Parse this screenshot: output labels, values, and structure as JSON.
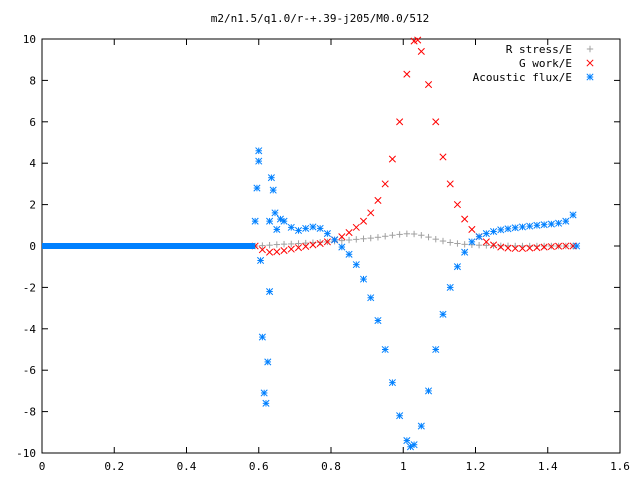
{
  "chart_data": {
    "type": "scatter",
    "title": "m2/n1.5/q1.0/r-+.39-j205/M0.0/512",
    "xlabel": "",
    "ylabel": "",
    "xlim": [
      0,
      1.6
    ],
    "ylim": [
      -10,
      10
    ],
    "x_ticks": [
      "0",
      "0.2",
      "0.4",
      "0.6",
      "0.8",
      "1",
      "1.2",
      "1.4",
      "1.6"
    ],
    "y_ticks": [
      "10",
      "8",
      "6",
      "4",
      "2",
      "0",
      "-2",
      "-4",
      "-6",
      "-8",
      "-10"
    ],
    "grid": false,
    "legend_position": "top-right",
    "series": [
      {
        "name": "R stress/E",
        "marker": "plus",
        "color": "#a0a0a0",
        "points": [
          [
            0.59,
            0.0
          ],
          [
            0.61,
            0.02
          ],
          [
            0.63,
            0.04
          ],
          [
            0.65,
            0.07
          ],
          [
            0.67,
            0.09
          ],
          [
            0.69,
            0.1
          ],
          [
            0.71,
            0.12
          ],
          [
            0.73,
            0.14
          ],
          [
            0.75,
            0.16
          ],
          [
            0.77,
            0.18
          ],
          [
            0.79,
            0.2
          ],
          [
            0.81,
            0.23
          ],
          [
            0.83,
            0.26
          ],
          [
            0.85,
            0.29
          ],
          [
            0.87,
            0.32
          ],
          [
            0.89,
            0.35
          ],
          [
            0.91,
            0.38
          ],
          [
            0.93,
            0.42
          ],
          [
            0.95,
            0.47
          ],
          [
            0.97,
            0.52
          ],
          [
            0.99,
            0.56
          ],
          [
            1.01,
            0.59
          ],
          [
            1.03,
            0.58
          ],
          [
            1.05,
            0.52
          ],
          [
            1.07,
            0.43
          ],
          [
            1.09,
            0.33
          ],
          [
            1.11,
            0.24
          ],
          [
            1.13,
            0.17
          ],
          [
            1.15,
            0.12
          ],
          [
            1.17,
            0.08
          ],
          [
            1.19,
            0.06
          ],
          [
            1.21,
            0.04
          ],
          [
            1.23,
            0.03
          ],
          [
            1.25,
            0.02
          ],
          [
            1.27,
            0.01
          ],
          [
            1.29,
            0.01
          ],
          [
            1.31,
            0.0
          ],
          [
            1.33,
            0.0
          ],
          [
            1.35,
            0.0
          ],
          [
            1.37,
            0.0
          ],
          [
            1.39,
            0.0
          ],
          [
            1.41,
            0.0
          ],
          [
            1.43,
            0.0
          ],
          [
            1.45,
            0.0
          ],
          [
            1.47,
            0.0
          ]
        ]
      },
      {
        "name": "G work/E",
        "marker": "cross",
        "color": "#ff0000",
        "points": [
          [
            0.59,
            0.0
          ],
          [
            0.61,
            -0.18
          ],
          [
            0.63,
            -0.3
          ],
          [
            0.65,
            -0.28
          ],
          [
            0.67,
            -0.22
          ],
          [
            0.69,
            -0.15
          ],
          [
            0.71,
            -0.08
          ],
          [
            0.73,
            -0.02
          ],
          [
            0.75,
            0.05
          ],
          [
            0.77,
            0.12
          ],
          [
            0.79,
            0.2
          ],
          [
            0.81,
            0.3
          ],
          [
            0.83,
            0.45
          ],
          [
            0.85,
            0.65
          ],
          [
            0.87,
            0.9
          ],
          [
            0.89,
            1.2
          ],
          [
            0.91,
            1.6
          ],
          [
            0.93,
            2.2
          ],
          [
            0.95,
            3.0
          ],
          [
            0.97,
            4.2
          ],
          [
            0.99,
            6.0
          ],
          [
            1.01,
            8.3
          ],
          [
            1.03,
            9.9
          ],
          [
            1.04,
            9.95
          ],
          [
            1.05,
            9.4
          ],
          [
            1.07,
            7.8
          ],
          [
            1.09,
            6.0
          ],
          [
            1.11,
            4.3
          ],
          [
            1.13,
            3.0
          ],
          [
            1.15,
            2.0
          ],
          [
            1.17,
            1.3
          ],
          [
            1.19,
            0.8
          ],
          [
            1.21,
            0.45
          ],
          [
            1.23,
            0.2
          ],
          [
            1.25,
            0.05
          ],
          [
            1.27,
            -0.05
          ],
          [
            1.29,
            -0.1
          ],
          [
            1.31,
            -0.12
          ],
          [
            1.33,
            -0.12
          ],
          [
            1.35,
            -0.1
          ],
          [
            1.37,
            -0.08
          ],
          [
            1.39,
            -0.05
          ],
          [
            1.41,
            -0.03
          ],
          [
            1.43,
            -0.01
          ],
          [
            1.45,
            0.0
          ],
          [
            1.47,
            0.0
          ]
        ]
      },
      {
        "name": "Acoustic flux/E",
        "marker": "star",
        "color": "#0080ff",
        "points": [
          [
            0.59,
            1.2
          ],
          [
            0.595,
            2.8
          ],
          [
            0.6,
            4.6
          ],
          [
            0.6,
            4.1
          ],
          [
            0.605,
            -0.7
          ],
          [
            0.61,
            -4.4
          ],
          [
            0.615,
            -7.1
          ],
          [
            0.62,
            -7.6
          ],
          [
            0.625,
            -5.6
          ],
          [
            0.63,
            -2.2
          ],
          [
            0.63,
            1.2
          ],
          [
            0.635,
            3.3
          ],
          [
            0.64,
            2.7
          ],
          [
            0.645,
            1.6
          ],
          [
            0.65,
            0.8
          ],
          [
            0.66,
            1.3
          ],
          [
            0.67,
            1.2
          ],
          [
            0.69,
            0.9
          ],
          [
            0.71,
            0.75
          ],
          [
            0.73,
            0.85
          ],
          [
            0.75,
            0.92
          ],
          [
            0.77,
            0.85
          ],
          [
            0.79,
            0.6
          ],
          [
            0.81,
            0.3
          ],
          [
            0.83,
            -0.05
          ],
          [
            0.85,
            -0.4
          ],
          [
            0.87,
            -0.9
          ],
          [
            0.89,
            -1.6
          ],
          [
            0.91,
            -2.5
          ],
          [
            0.93,
            -3.6
          ],
          [
            0.95,
            -5.0
          ],
          [
            0.97,
            -6.6
          ],
          [
            0.99,
            -8.2
          ],
          [
            1.01,
            -9.4
          ],
          [
            1.02,
            -9.7
          ],
          [
            1.03,
            -9.6
          ],
          [
            1.05,
            -8.7
          ],
          [
            1.07,
            -7.0
          ],
          [
            1.09,
            -5.0
          ],
          [
            1.11,
            -3.3
          ],
          [
            1.13,
            -2.0
          ],
          [
            1.15,
            -1.0
          ],
          [
            1.17,
            -0.3
          ],
          [
            1.19,
            0.2
          ],
          [
            1.21,
            0.45
          ],
          [
            1.23,
            0.6
          ],
          [
            1.25,
            0.7
          ],
          [
            1.27,
            0.78
          ],
          [
            1.29,
            0.83
          ],
          [
            1.31,
            0.88
          ],
          [
            1.33,
            0.92
          ],
          [
            1.35,
            0.96
          ],
          [
            1.37,
            1.0
          ],
          [
            1.39,
            1.03
          ],
          [
            1.41,
            1.06
          ],
          [
            1.43,
            1.1
          ],
          [
            1.45,
            1.2
          ],
          [
            1.47,
            1.5
          ],
          [
            1.48,
            0.0
          ]
        ],
        "baseline_segment": [
          0.0,
          0.59,
          0.0
        ]
      }
    ]
  }
}
